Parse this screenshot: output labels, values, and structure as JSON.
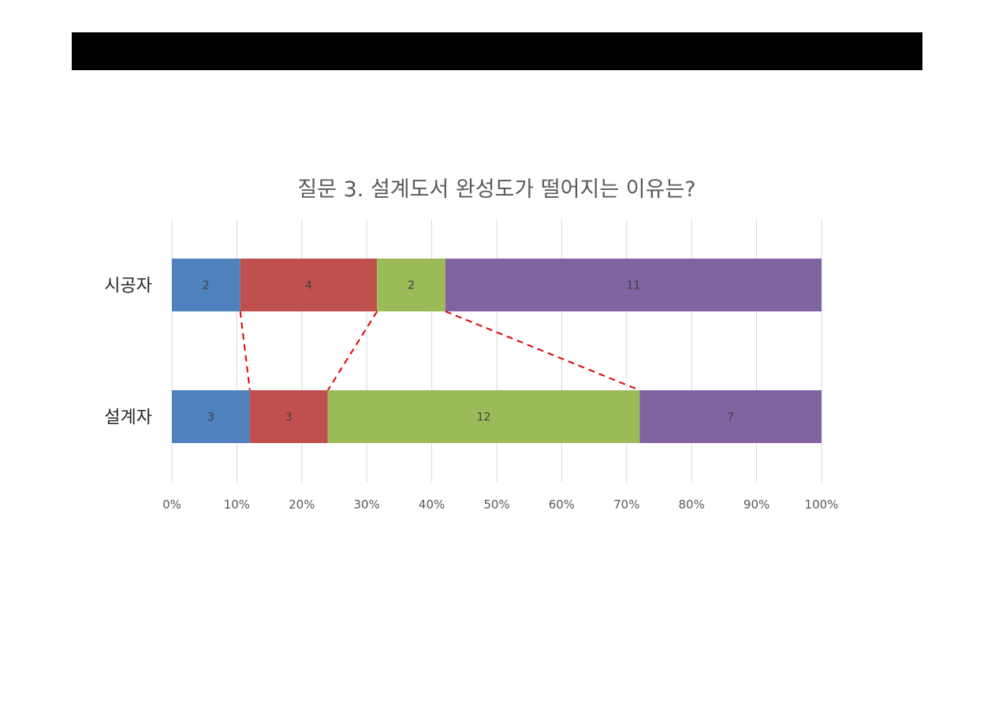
{
  "header_bar": {
    "color": "#000000"
  },
  "chart_data": {
    "type": "bar",
    "orientation": "horizontal",
    "stacking": "percent",
    "title": "질문 3. 설계도서 완성도가 떨어지는 이유는?",
    "categories": [
      "시공자",
      "설계자"
    ],
    "series": [
      {
        "values": [
          2,
          3
        ],
        "color": "#4F81BD"
      },
      {
        "values": [
          4,
          3
        ],
        "color": "#C0504D"
      },
      {
        "values": [
          2,
          12
        ],
        "color": "#9BBB59"
      },
      {
        "values": [
          11,
          7
        ],
        "color": "#8064A2"
      }
    ],
    "x_ticks": [
      "0%",
      "10%",
      "20%",
      "30%",
      "40%",
      "50%",
      "60%",
      "70%",
      "80%",
      "90%",
      "100%"
    ],
    "xlim": [
      0,
      100
    ],
    "grid": "vertical",
    "data_labels": true,
    "annotations": {
      "connector_lines": "red dashed lines linking series boundaries between the two bars",
      "color": "#E00000"
    }
  }
}
